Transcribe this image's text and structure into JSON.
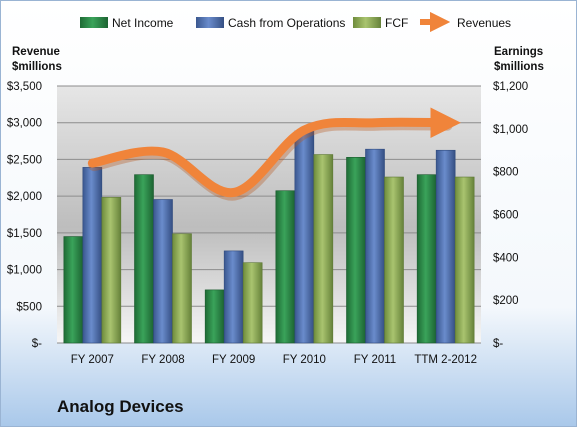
{
  "company": "Analog Devices",
  "colors": {
    "net_income": "#2e8b4a",
    "cash_ops": "#4f6fae",
    "fcf": "#8fad57",
    "revenues": "#f0843a"
  },
  "chart_data": {
    "type": "bar",
    "categories": [
      "FY 2007",
      "FY 2008",
      "FY 2009",
      "FY 2010",
      "FY 2011",
      "TTM 2-2012"
    ],
    "left_axis": {
      "title_line1": "Revenue",
      "title_line2": "$millions",
      "ylim": [
        0,
        3500
      ],
      "ticks": [
        "$-",
        "$500",
        "$1,000",
        "$1,500",
        "$2,000",
        "$2,500",
        "$3,000",
        "$3,500"
      ]
    },
    "right_axis": {
      "title_line1": "Earnings",
      "title_line2": "$millions",
      "ylim": [
        0,
        1200
      ],
      "ticks": [
        "$-",
        "$200",
        "$400",
        "$600",
        "$800",
        "$1,000",
        "$1,200"
      ]
    },
    "grid": true,
    "legend_position": "top",
    "series": [
      {
        "name": "Net Income",
        "axis": "right",
        "values": [
          497,
          786,
          248,
          711,
          867,
          786
        ]
      },
      {
        "name": "Cash from Operations",
        "axis": "right",
        "values": [
          820,
          670,
          430,
          990,
          905,
          900
        ]
      },
      {
        "name": "FCF",
        "axis": "right",
        "values": [
          680,
          510,
          375,
          880,
          775,
          775
        ]
      },
      {
        "name": "Revenues",
        "type": "line",
        "axis": "left",
        "values": [
          2450,
          2600,
          2050,
          2900,
          3000,
          3000
        ]
      }
    ]
  }
}
